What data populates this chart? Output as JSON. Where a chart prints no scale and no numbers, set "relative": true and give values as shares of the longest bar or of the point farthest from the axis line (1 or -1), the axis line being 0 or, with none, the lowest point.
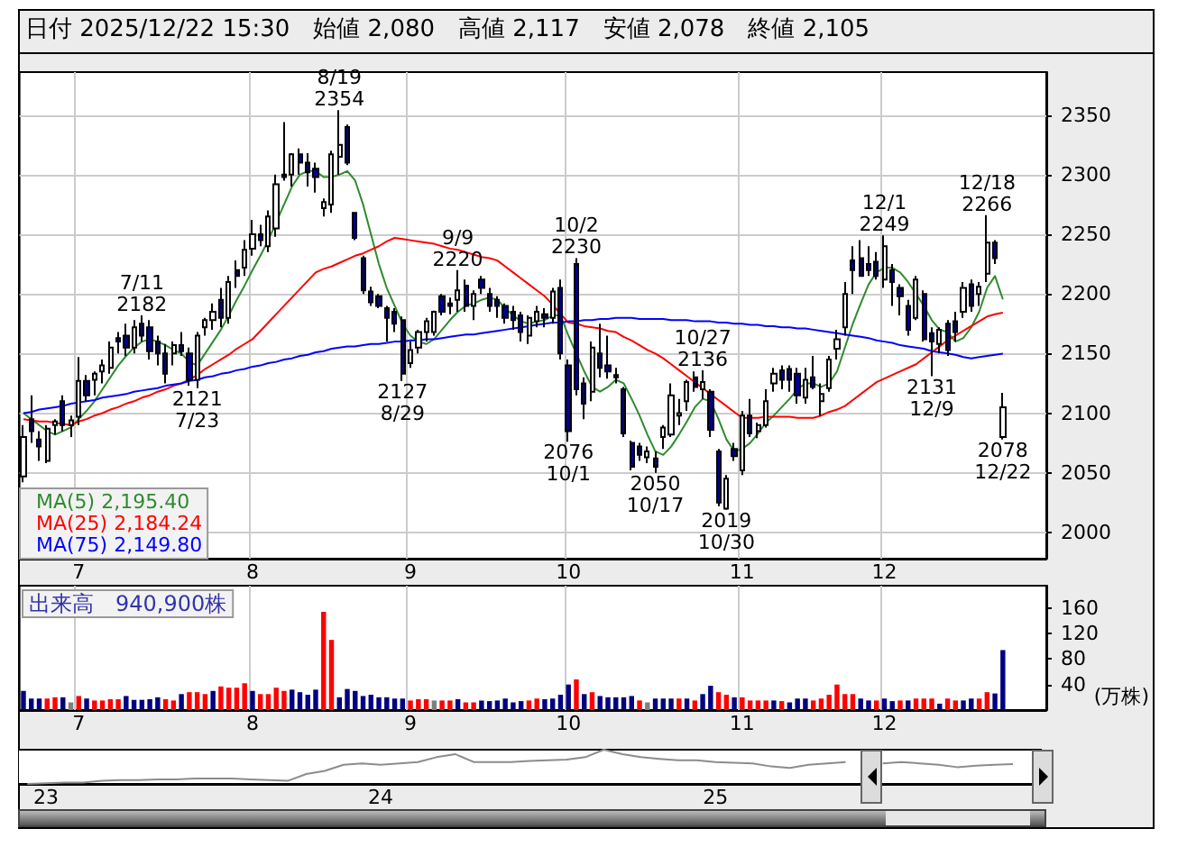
{
  "chart_data": [
    {
      "type": "candlestick",
      "title": "日付 2025/12/22 15:30　始値 2,080　高値 2,117　安値 2,078　終値 2,105",
      "colors": [
        "#ffffff",
        "#00008b",
        "#00008b",
        "#ffffff",
        "#ffffff",
        "#00008b",
        "#ffffff",
        "#ffffff",
        "#00008b",
        "#ffffff",
        "#ffffff",
        "#ffffff",
        "#00008b",
        "#00008b",
        "#ffffff",
        "#00008b",
        "#00008b",
        "#00008b",
        "#00008b",
        "#ffffff",
        "#00008b",
        "#00008b",
        "#ffffff",
        "#ffffff",
        "#ffffff",
        "#00008b",
        "#ffffff",
        "#00008b",
        "#ffffff",
        "#ffffff",
        "#00008b",
        "#ffffff",
        "#ffffff",
        "#00008b",
        "#ffffff",
        "#00008b",
        "#00008b",
        "#00008b",
        "#ffffff",
        "#ffffff",
        "#ffffff",
        "#00008b",
        "#00008b",
        "#00008b",
        "#00008b",
        "#00008b",
        "#00008b",
        "#00008b",
        "#00008b",
        "#ffffff",
        "#ffffff",
        "#ffffff",
        "#ffffff",
        "#00008b",
        "#00008b",
        "#ffffff",
        "#00008b",
        "#ffffff",
        "#00008b",
        "#00008b",
        "#00008b",
        "#00008b",
        "#00008b",
        "#00008b",
        "#ffffff",
        "#ffffff",
        "#00008b",
        "#ffffff",
        "#00008b",
        "#00008b",
        "#00008b",
        "#00008b",
        "#ffffff",
        "#00008b",
        "#00008b",
        "#00008b",
        "#00008b",
        "#00008b",
        "#00008b",
        "#ffffff",
        "#00008b",
        "#ffffff",
        "#ffffff",
        "#ffffff",
        "#ffffff",
        "#00008b",
        "#ffffff",
        "#00008b",
        "#00008b",
        "#ffffff",
        "#00008b",
        "#ffffff",
        "#00008b",
        "#ffffff",
        "#ffffff",
        "#ffffff",
        "#00008b",
        "#00008b",
        "#00008b",
        "#ffffff",
        "#00008b",
        "#ffffff",
        "#ffffff",
        "#ffffff",
        "#ffffff",
        "#00008b",
        "#00008b",
        "#00008b",
        "#00008b",
        "#ffffff",
        "#00008b",
        "#00008b",
        "#00008b",
        "#ffffff",
        "#00008b",
        "#00008b",
        "#ffffff",
        "#00008b",
        "#00008b",
        "#ffffff",
        "#00008b",
        "#ffffff",
        "#ffffff",
        "#00008b",
        "#ffffff",
        null,
        null,
        null,
        null,
        null
      ],
      "categories": [
        null,
        null,
        null,
        null,
        null,
        null,
        null,
        "7",
        null,
        null,
        null,
        null,
        null,
        null,
        null,
        null,
        null,
        null,
        null,
        null,
        null,
        null,
        null,
        null,
        null,
        null,
        null,
        null,
        null,
        "8",
        null,
        null,
        null,
        null,
        null,
        null,
        null,
        null,
        null,
        null,
        null,
        null,
        null,
        null,
        null,
        null,
        null,
        null,
        null,
        "9",
        null,
        null,
        null,
        null,
        null,
        null,
        null,
        null,
        null,
        null,
        null,
        null,
        null,
        null,
        null,
        null,
        null,
        null,
        null,
        "10",
        null,
        null,
        null,
        null,
        null,
        null,
        null,
        null,
        null,
        null,
        null,
        null,
        null,
        null,
        null,
        null,
        null,
        null,
        null,
        null,
        null,
        "11",
        null,
        null,
        null,
        null,
        null,
        null,
        null,
        null,
        null,
        null,
        null,
        null,
        null,
        null,
        null,
        null,
        null,
        "12",
        null,
        null,
        null,
        null,
        null,
        null,
        null,
        null,
        null,
        null,
        null,
        null,
        null,
        null,
        null,
        null,
        null,
        null,
        null,
        null
      ],
      "ohlc": [
        [
          2047,
          2090,
          2042,
          2080
        ],
        [
          2095,
          2115,
          2075,
          2085
        ],
        [
          2078,
          2085,
          2060,
          2072
        ],
        [
          2060,
          2090,
          2058,
          2087
        ],
        [
          2090,
          2095,
          2082,
          2093
        ],
        [
          2110,
          2115,
          2085,
          2090
        ],
        [
          2090,
          2098,
          2080,
          2094
        ],
        [
          2097,
          2147,
          2090,
          2127
        ],
        [
          2127,
          2132,
          2110,
          2115
        ],
        [
          2128,
          2135,
          2115,
          2133
        ],
        [
          2135,
          2145,
          2125,
          2140
        ],
        [
          2138,
          2160,
          2133,
          2155
        ],
        [
          2163,
          2168,
          2150,
          2160
        ],
        [
          2165,
          2175,
          2148,
          2155
        ],
        [
          2155,
          2178,
          2150,
          2172
        ],
        [
          2175,
          2182,
          2160,
          2165
        ],
        [
          2172,
          2178,
          2145,
          2152
        ],
        [
          2160,
          2165,
          2140,
          2150
        ],
        [
          2150,
          2158,
          2125,
          2133
        ],
        [
          2150,
          2160,
          2140,
          2157
        ],
        [
          2157,
          2168,
          2148,
          2152
        ],
        [
          2150,
          2155,
          2123,
          2128
        ],
        [
          2128,
          2168,
          2121,
          2165
        ],
        [
          2172,
          2180,
          2165,
          2178
        ],
        [
          2178,
          2192,
          2170,
          2185
        ],
        [
          2195,
          2205,
          2172,
          2180
        ],
        [
          2180,
          2215,
          2175,
          2210
        ],
        [
          2220,
          2228,
          2205,
          2215
        ],
        [
          2222,
          2245,
          2215,
          2237
        ],
        [
          2238,
          2262,
          2232,
          2250
        ],
        [
          2250,
          2258,
          2240,
          2245
        ],
        [
          2240,
          2270,
          2235,
          2265
        ],
        [
          2255,
          2300,
          2248,
          2292
        ],
        [
          2300,
          2344,
          2295,
          2298
        ],
        [
          2300,
          2318,
          2290,
          2317
        ],
        [
          2317,
          2322,
          2300,
          2310
        ],
        [
          2310,
          2318,
          2290,
          2302
        ],
        [
          2305,
          2310,
          2285,
          2298
        ],
        [
          2272,
          2280,
          2265,
          2277
        ],
        [
          2275,
          2320,
          2268,
          2317
        ],
        [
          2315,
          2354,
          2300,
          2325
        ],
        [
          2340,
          2342,
          2308,
          2310
        ],
        [
          2268,
          2268,
          2245,
          2247
        ],
        [
          2230,
          2232,
          2200,
          2203
        ],
        [
          2202,
          2206,
          2190,
          2193
        ],
        [
          2198,
          2200,
          2188,
          2190
        ],
        [
          2188,
          2190,
          2160,
          2180
        ],
        [
          2185,
          2188,
          2168,
          2175
        ],
        [
          2178,
          2181,
          2127,
          2133
        ],
        [
          2142,
          2160,
          2138,
          2153
        ],
        [
          2155,
          2170,
          2150,
          2168
        ],
        [
          2168,
          2180,
          2160,
          2177
        ],
        [
          2168,
          2186,
          2165,
          2185
        ],
        [
          2198,
          2200,
          2182,
          2185
        ],
        [
          2192,
          2197,
          2183,
          2190
        ],
        [
          2195,
          2220,
          2185,
          2203
        ],
        [
          2207,
          2212,
          2185,
          2190
        ],
        [
          2190,
          2203,
          2178,
          2200
        ],
        [
          2212,
          2215,
          2200,
          2205
        ],
        [
          2200,
          2205,
          2185,
          2190
        ],
        [
          2195,
          2198,
          2180,
          2190
        ],
        [
          2190,
          2192,
          2175,
          2180
        ],
        [
          2185,
          2190,
          2170,
          2178
        ],
        [
          2182,
          2185,
          2160,
          2168
        ],
        [
          2165,
          2182,
          2158,
          2180
        ],
        [
          2177,
          2190,
          2172,
          2185
        ],
        [
          2183,
          2188,
          2172,
          2180
        ],
        [
          2180,
          2205,
          2175,
          2202
        ],
        [
          2205,
          2212,
          2145,
          2150
        ],
        [
          2140,
          2145,
          2076,
          2085
        ],
        [
          2225,
          2230,
          2115,
          2120
        ],
        [
          2125,
          2130,
          2095,
          2108
        ],
        [
          2118,
          2160,
          2110,
          2155
        ],
        [
          2150,
          2175,
          2130,
          2138
        ],
        [
          2140,
          2165,
          2129,
          2135
        ],
        [
          2132,
          2138,
          2125,
          2130
        ],
        [
          2120,
          2122,
          2080,
          2083
        ],
        [
          2075,
          2077,
          2052,
          2055
        ],
        [
          2072,
          2075,
          2060,
          2065
        ],
        [
          2063,
          2072,
          2058,
          2068
        ],
        [
          2062,
          2068,
          2050,
          2055
        ],
        [
          2080,
          2090,
          2070,
          2088
        ],
        [
          2082,
          2125,
          2080,
          2115
        ],
        [
          2098,
          2112,
          2090,
          2100
        ],
        [
          2110,
          2128,
          2102,
          2126
        ],
        [
          2130,
          2135,
          2118,
          2122
        ],
        [
          2120,
          2136,
          2112,
          2126
        ],
        [
          2118,
          2120,
          2080,
          2086
        ],
        [
          2068,
          2070,
          2022,
          2025
        ],
        [
          2020,
          2048,
          2019,
          2045
        ],
        [
          2070,
          2075,
          2060,
          2064
        ],
        [
          2052,
          2102,
          2048,
          2098
        ],
        [
          2098,
          2112,
          2080,
          2083
        ],
        [
          2085,
          2092,
          2079,
          2090
        ],
        [
          2090,
          2120,
          2088,
          2110
        ],
        [
          2125,
          2138,
          2118,
          2133
        ],
        [
          2136,
          2140,
          2120,
          2128
        ],
        [
          2137,
          2140,
          2118,
          2128
        ],
        [
          2133,
          2138,
          2108,
          2115
        ],
        [
          2113,
          2138,
          2108,
          2128
        ],
        [
          2130,
          2148,
          2120,
          2122
        ],
        [
          2110,
          2125,
          2098,
          2116
        ],
        [
          2121,
          2148,
          2118,
          2145
        ],
        [
          2154,
          2170,
          2145,
          2162
        ],
        [
          2172,
          2210,
          2165,
          2200
        ],
        [
          2228,
          2240,
          2200,
          2220
        ],
        [
          2230,
          2245,
          2215,
          2215
        ],
        [
          2225,
          2240,
          2215,
          2220
        ],
        [
          2227,
          2235,
          2212,
          2215
        ],
        [
          2212,
          2249,
          2205,
          2240
        ],
        [
          2220,
          2225,
          2190,
          2210
        ],
        [
          2205,
          2208,
          2182,
          2198
        ],
        [
          2190,
          2195,
          2165,
          2170
        ],
        [
          2180,
          2215,
          2178,
          2212
        ],
        [
          2200,
          2203,
          2160,
          2162
        ],
        [
          2167,
          2172,
          2131,
          2160
        ],
        [
          2158,
          2172,
          2150,
          2170
        ],
        [
          2175,
          2178,
          2148,
          2153
        ],
        [
          2177,
          2185,
          2160,
          2168
        ],
        [
          2185,
          2210,
          2180,
          2205
        ],
        [
          2208,
          2212,
          2185,
          2190
        ],
        [
          2200,
          2210,
          2190,
          2206
        ],
        [
          2217,
          2266,
          2210,
          2243
        ],
        [
          2243,
          2245,
          2225,
          2230
        ],
        [
          2080,
          2117,
          2078,
          2105
        ],
        null,
        null,
        null,
        null,
        null
      ],
      "series": [
        {
          "type": "line",
          "name": "MA(5) 2,195.40",
          "color": "#2e8b2e",
          "values": [
            2100,
            2095,
            2090,
            2085,
            2082,
            2085,
            2088,
            2095,
            2102,
            2110,
            2120,
            2130,
            2140,
            2148,
            2155,
            2160,
            2162,
            2160,
            2157,
            2153,
            2150,
            2143,
            2140,
            2150,
            2160,
            2170,
            2182,
            2195,
            2207,
            2220,
            2232,
            2245,
            2260,
            2275,
            2290,
            2300,
            2303,
            2303,
            2298,
            2298,
            2300,
            2303,
            2295,
            2275,
            2250,
            2225,
            2205,
            2190,
            2175,
            2165,
            2160,
            2158,
            2162,
            2170,
            2178,
            2185,
            2190,
            2192,
            2195,
            2197,
            2195,
            2188,
            2182,
            2177,
            2175,
            2177,
            2178,
            2182,
            2182,
            2165,
            2150,
            2135,
            2122,
            2118,
            2122,
            2128,
            2125,
            2112,
            2098,
            2082,
            2068,
            2065,
            2072,
            2082,
            2093,
            2105,
            2112,
            2110,
            2095,
            2078,
            2068,
            2070,
            2075,
            2083,
            2092,
            2098,
            2105,
            2112,
            2120,
            2125,
            2125,
            2122,
            2125,
            2135,
            2155,
            2175,
            2192,
            2208,
            2218,
            2222,
            2222,
            2218,
            2210,
            2200,
            2190,
            2178,
            2170,
            2168,
            2160,
            2163,
            2172,
            2185,
            2205,
            2215,
            2195.4,
            null,
            null,
            null,
            null,
            null
          ]
        },
        {
          "type": "line",
          "name": "MA(25) 2,184.24",
          "color": "#ff0000",
          "values": [
            2095,
            2094,
            2093,
            2093,
            2092,
            2091,
            2090,
            2093,
            2095,
            2098,
            2100,
            2103,
            2105,
            2108,
            2110,
            2113,
            2115,
            2118,
            2120,
            2123,
            2125,
            2128,
            2132,
            2137,
            2141,
            2145,
            2149,
            2154,
            2158,
            2162,
            2169,
            2176,
            2183,
            2190,
            2197,
            2204,
            2211,
            2218,
            2221,
            2223,
            2226,
            2229,
            2232,
            2234,
            2237,
            2240,
            2244,
            2247,
            2246,
            2245,
            2244,
            2243,
            2242,
            2240,
            2238,
            2237,
            2235,
            2233,
            2231,
            2230,
            2228,
            2223,
            2218,
            2213,
            2208,
            2203,
            2198,
            2191,
            2183,
            2176,
            2175,
            2173,
            2172,
            2171,
            2169,
            2168,
            2164,
            2161,
            2157,
            2153,
            2150,
            2146,
            2141,
            2136,
            2131,
            2126,
            2121,
            2116,
            2111,
            2106,
            2101,
            2096,
            2096,
            2096,
            2097,
            2097,
            2097,
            2097,
            2096,
            2096,
            2096,
            2098,
            2101,
            2103,
            2106,
            2111,
            2116,
            2121,
            2126,
            2129,
            2132,
            2135,
            2138,
            2141,
            2146,
            2151,
            2156,
            2161,
            2165,
            2169,
            2173,
            2177,
            2181,
            2183,
            2184.24,
            null,
            null,
            null,
            null,
            null
          ]
        },
        {
          "type": "line",
          "name": "MA(75) 2,149.80",
          "color": "#0000ff",
          "values": [
            2100,
            2101,
            2103,
            2104,
            2105,
            2106,
            2108,
            2109,
            2110,
            2111,
            2113,
            2114,
            2115,
            2116,
            2118,
            2119,
            2120,
            2121,
            2123,
            2124,
            2125,
            2127,
            2128,
            2130,
            2131,
            2133,
            2134,
            2136,
            2137,
            2139,
            2140,
            2142,
            2143,
            2145,
            2146,
            2148,
            2149,
            2151,
            2152,
            2154,
            2155,
            2156,
            2156,
            2157,
            2158,
            2158,
            2159,
            2160,
            2160,
            2161,
            2161,
            2162,
            2162,
            2163,
            2164,
            2165,
            2166,
            2166,
            2167,
            2168,
            2169,
            2170,
            2171,
            2172,
            2173,
            2174,
            2175,
            2176,
            2176,
            2177,
            2177,
            2178,
            2178,
            2179,
            2179,
            2180,
            2180,
            2180,
            2179,
            2179,
            2179,
            2179,
            2178,
            2178,
            2178,
            2177,
            2177,
            2177,
            2176,
            2176,
            2175,
            2175,
            2174,
            2174,
            2173,
            2173,
            2172,
            2172,
            2171,
            2171,
            2170,
            2169,
            2168,
            2167,
            2166,
            2165,
            2164,
            2163,
            2161,
            2160,
            2159,
            2157,
            2156,
            2155,
            2154,
            2152,
            2151,
            2150,
            2149,
            2147,
            2146,
            2147,
            2148,
            2149,
            2149.8,
            null,
            null,
            null,
            null,
            null
          ]
        }
      ],
      "ylim": [
        1978,
        2386
      ],
      "yticks": [
        2000,
        2050,
        2100,
        2150,
        2200,
        2250,
        2300,
        2350
      ],
      "grid": true,
      "legend": "bottom left",
      "marker": "none",
      "annotations": [
        {
          "text": "7/11\n2182",
          "y": 2182
        },
        {
          "text": "2121\n7/23",
          "y": 2121
        },
        {
          "text": "8/19\n2354",
          "y": 2354
        },
        {
          "text": "2127\n8/29",
          "y": 2127
        },
        {
          "text": "9/9\n2220",
          "y": 2220
        },
        {
          "text": "2076\n10/1",
          "y": 2076
        },
        {
          "text": "10/2\n2230",
          "y": 2230
        },
        {
          "text": "2050\n10/17",
          "y": 2050
        },
        {
          "text": "10/27\n2136",
          "y": 2136
        },
        {
          "text": "2019\n10/30",
          "y": 2019
        },
        {
          "text": "12/1\n2249",
          "y": 2249
        },
        {
          "text": "2131\n12/9",
          "y": 2131
        },
        {
          "text": "12/18\n2266",
          "y": 2266
        },
        {
          "text": "2078\n12/22",
          "y": 2078
        }
      ]
    },
    {
      "type": "bar",
      "ylabel": "(万株)",
      "annotations": [
        "出来高　940,900株"
      ],
      "categories": [
        null,
        null,
        null,
        null,
        null,
        null,
        null,
        "7",
        null,
        null,
        null,
        null,
        null,
        null,
        null,
        null,
        null,
        null,
        null,
        null,
        null,
        null,
        null,
        null,
        null,
        null,
        null,
        null,
        null,
        "8",
        null,
        null,
        null,
        null,
        null,
        null,
        null,
        null,
        null,
        null,
        null,
        null,
        null,
        null,
        null,
        null,
        null,
        null,
        null,
        "9",
        null,
        null,
        null,
        null,
        null,
        null,
        null,
        null,
        null,
        null,
        null,
        null,
        null,
        null,
        null,
        null,
        null,
        null,
        null,
        "10",
        null,
        null,
        null,
        null,
        null,
        null,
        null,
        null,
        null,
        null,
        null,
        null,
        null,
        null,
        null,
        null,
        null,
        null,
        null,
        null,
        null,
        "11",
        null,
        null,
        null,
        null,
        null,
        null,
        null,
        null,
        null,
        null,
        null,
        null,
        null,
        null,
        null,
        null,
        null,
        "12",
        null,
        null,
        null,
        null,
        null,
        null,
        null,
        null,
        null,
        null,
        null,
        null,
        null,
        null,
        null,
        null,
        null,
        null,
        null,
        null
      ],
      "values": [
        30,
        18,
        18,
        18,
        20,
        20,
        12,
        22,
        18,
        15,
        15,
        17,
        17,
        22,
        16,
        16,
        17,
        20,
        17,
        15,
        25,
        28,
        28,
        25,
        30,
        37,
        35,
        35,
        42,
        30,
        25,
        25,
        35,
        30,
        32,
        28,
        24,
        32,
        154,
        110,
        20,
        33,
        30,
        22,
        24,
        20,
        20,
        18,
        18,
        15,
        17,
        17,
        15,
        15,
        15,
        17,
        12,
        12,
        15,
        14,
        15,
        18,
        12,
        14,
        15,
        18,
        17,
        18,
        24,
        40,
        48,
        25,
        28,
        22,
        20,
        20,
        20,
        22,
        15,
        12,
        18,
        18,
        18,
        18,
        18,
        15,
        25,
        38,
        28,
        24,
        20,
        20,
        15,
        15,
        15,
        15,
        14,
        12,
        18,
        18,
        15,
        18,
        24,
        40,
        25,
        25,
        18,
        15,
        15,
        18,
        14,
        15,
        15,
        18,
        18,
        18,
        10,
        18,
        15,
        15,
        18,
        18,
        28,
        26,
        94,
        null,
        null,
        null,
        null,
        null
      ],
      "colors": [
        "#000080",
        "#000080",
        "#000080",
        "#ff0000",
        "#ff0000",
        "#000080",
        "#808080",
        "#ff0000",
        "#000080",
        "#ff0000",
        "#ff0000",
        "#ff0000",
        "#ff0000",
        "#000080",
        "#000080",
        "#000080",
        "#000080",
        "#000080",
        "#ff0000",
        "#ff0000",
        "#000080",
        "#ff0000",
        "#ff0000",
        "#ff0000",
        "#000080",
        "#ff0000",
        "#ff0000",
        "#ff0000",
        "#ff0000",
        "#000080",
        "#ff0000",
        "#ff0000",
        "#ff0000",
        "#ff0000",
        "#000080",
        "#000080",
        "#000080",
        "#000080",
        "#ff0000",
        "#ff0000",
        "#000080",
        "#000080",
        "#000080",
        "#000080",
        "#000080",
        "#000080",
        "#000080",
        "#000080",
        "#000080",
        "#ff0000",
        "#ff0000",
        "#ff0000",
        "#808080",
        "#ff0000",
        "#ff0000",
        "#000080",
        "#ff0000",
        "#ff0000",
        "#000080",
        "#000080",
        "#000080",
        "#000080",
        "#000080",
        "#000080",
        "#ff0000",
        "#ff0000",
        "#000080",
        "#000080",
        "#000080",
        "#000080",
        "#ff0000",
        "#000080",
        "#ff0000",
        "#000080",
        "#000080",
        "#000080",
        "#000080",
        "#000080",
        "#ff0000",
        "#808080",
        "#000080",
        "#000080",
        "#000080",
        "#ff0000",
        "#000080",
        "#ff0000",
        "#000080",
        "#000080",
        "#ff0000",
        "#ff0000",
        "#000080",
        "#ff0000",
        "#ff0000",
        "#ff0000",
        "#ff0000",
        "#000080",
        "#ff0000",
        "#000080",
        "#000080",
        "#000080",
        "#ff0000",
        "#ff0000",
        "#ff0000",
        "#ff0000",
        "#ff0000",
        "#ff0000",
        "#000080",
        "#000080",
        "#ff0000",
        "#000080",
        "#000080",
        "#ff0000",
        "#000080",
        "#ff0000",
        "#ff0000",
        "#ff0000",
        "#000080",
        "#ff0000",
        "#ff0000",
        "#000080",
        "#000080",
        "#ff0000",
        "#ff0000",
        "#000080",
        "#000080",
        null,
        null,
        null,
        null,
        null
      ],
      "ylim": [
        0,
        195
      ],
      "yticks": [
        40,
        80,
        120,
        160
      ],
      "grid": "x"
    },
    {
      "type": "line",
      "relative": true,
      "color": "#8c8c8c",
      "tick_labels": "x",
      "marker": "none",
      "categories": [
        null,
        "23",
        null,
        null,
        null,
        null,
        null,
        null,
        null,
        null,
        null,
        null,
        null,
        null,
        null,
        null,
        null,
        null,
        null,
        "24",
        null,
        null,
        null,
        null,
        null,
        null,
        null,
        null,
        null,
        null,
        null,
        null,
        null,
        null,
        null,
        null,
        null,
        "25",
        null,
        null,
        null,
        null,
        null,
        null,
        null,
        null,
        null,
        null,
        null,
        null,
        null,
        null,
        null,
        null,
        null
      ],
      "values": [
        0,
        0.02,
        0.04,
        0.04,
        0.09,
        0.11,
        0.11,
        0.13,
        0.13,
        0.16,
        0.16,
        0.16,
        0.13,
        0.11,
        0.09,
        0.29,
        0.38,
        0.56,
        0.6,
        0.56,
        0.6,
        0.64,
        0.78,
        0.87,
        0.64,
        0.64,
        0.64,
        0.67,
        0.69,
        0.71,
        0.78,
        1,
        0.87,
        0.78,
        0.73,
        0.69,
        0.69,
        0.64,
        0.62,
        0.6,
        0.51,
        0.47,
        0.56,
        0.6,
        0.64,
        null,
        0.6,
        0.64,
        0.6,
        0.56,
        0.49,
        0.53,
        0.56,
        0.58,
        null
      ]
    }
  ]
}
